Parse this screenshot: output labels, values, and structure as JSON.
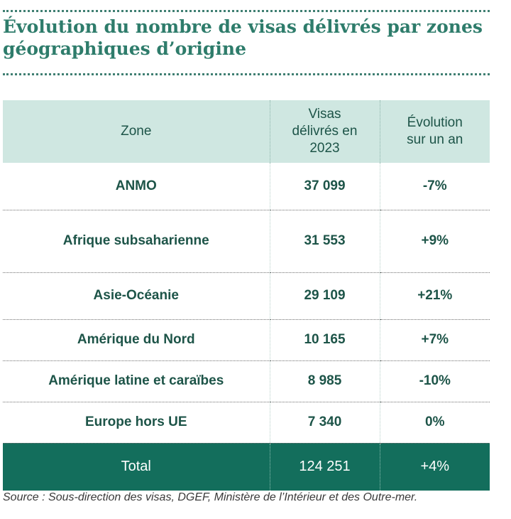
{
  "title": "Évolution du nombre de visas délivrés par zones géographiques d’origine",
  "table": {
    "headers": {
      "zone": "Zone",
      "visas_lines": [
        "Visas",
        "délivrés en",
        "2023"
      ],
      "evolution_lines": [
        "Évolution",
        "sur un an"
      ]
    },
    "rows": [
      {
        "zone": "ANMO",
        "visas": "37 099",
        "evolution": "-7%"
      },
      {
        "zone": "Afrique subsaharienne",
        "visas": "31 553",
        "evolution": "+9%"
      },
      {
        "zone": "Asie-Océanie",
        "visas": "29 109",
        "evolution": "+21%"
      },
      {
        "zone": "Amérique du Nord",
        "visas": "10 165",
        "evolution": "+7%"
      },
      {
        "zone": "Amérique latine et caraïbes",
        "visas": "8 985",
        "evolution": "-10%"
      },
      {
        "zone": "Europe hors UE",
        "visas": "7 340",
        "evolution": "0%"
      }
    ],
    "total": {
      "label": "Total",
      "visas": "124 251",
      "evolution": "+4%"
    }
  },
  "source": "Source : Sous-direction des visas, DGEF, Ministère de l’Intérieur et des Outre-mer."
}
